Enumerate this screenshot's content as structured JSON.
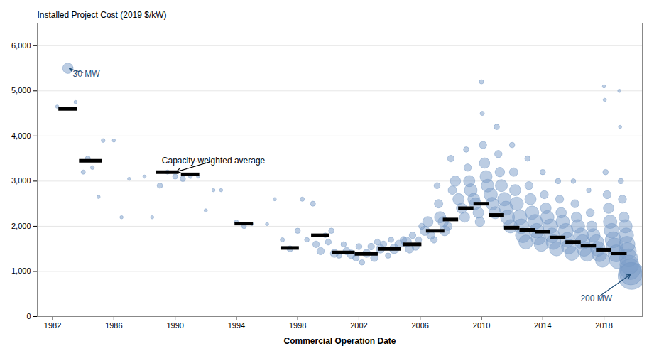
{
  "chart_data": {
    "type": "scatter",
    "ylabel": "Installed Project Cost (2019 $/kW)",
    "xlabel": "Commercial Operation Date",
    "xlim": [
      1981,
      2020.5
    ],
    "ylim": [
      0,
      6500
    ],
    "xticks": [
      1982,
      1986,
      1990,
      1994,
      1998,
      2002,
      2006,
      2010,
      2014,
      2018
    ],
    "yticks": [
      0,
      {
        "value": 1000,
        "label": "1,000"
      },
      {
        "value": 2000,
        "label": "2,000"
      },
      {
        "value": 3000,
        "label": "3,000"
      },
      {
        "value": 4000,
        "label": "4,000"
      },
      {
        "value": 5000,
        "label": "5,000"
      },
      {
        "value": 6000,
        "label": "6,000"
      }
    ],
    "grid": true,
    "series": [
      {
        "type": "bubble",
        "color": "#7A9CC7",
        "x": [
          1982.3,
          1983.0,
          1983.5,
          1984.0,
          1984.3,
          1984.6,
          1985.0,
          1985.3,
          1986.0,
          1986.5,
          1987.0,
          1988.0,
          1988.5,
          1989.0,
          1989.5,
          1990.0,
          1990.5,
          1991.0,
          1991.5,
          1992.0,
          1992.5,
          1993.0,
          1994.0,
          1994.5,
          1995.0,
          1996.0,
          1996.5,
          1997.0,
          1997.5,
          1998.0,
          1998.3,
          1998.6,
          1999.0,
          1999.2,
          1999.5,
          1999.8,
          2000.0,
          2000.2,
          2000.4,
          2000.7,
          2001.0,
          2001.2,
          2001.5,
          2001.8,
          2002.0,
          2002.2,
          2002.5,
          2002.8,
          2003.0,
          2003.2,
          2003.4,
          2003.6,
          2003.9,
          2004.1,
          2004.3,
          2004.6,
          2004.9,
          2005.1,
          2005.3,
          2005.5,
          2005.7,
          2005.9,
          2006.1,
          2006.3,
          2006.5,
          2006.7,
          2006.9,
          2007.1,
          2007.2,
          2007.3,
          2007.5,
          2007.6,
          2007.8,
          2008.0,
          2008.1,
          2008.3,
          2008.5,
          2008.7,
          2008.9,
          2009.0,
          2009.1,
          2009.2,
          2009.3,
          2009.5,
          2009.6,
          2009.8,
          2009.9,
          2010.0,
          2010.05,
          2010.1,
          2010.2,
          2010.3,
          2010.4,
          2010.6,
          2010.7,
          2010.9,
          2011.0,
          2011.1,
          2011.2,
          2011.3,
          2011.5,
          2011.6,
          2011.7,
          2011.9,
          2012.0,
          2012.1,
          2012.2,
          2012.3,
          2012.5,
          2012.6,
          2012.7,
          2012.9,
          2013.0,
          2013.1,
          2013.2,
          2013.3,
          2013.5,
          2013.6,
          2013.7,
          2013.9,
          2014.0,
          2014.1,
          2014.2,
          2014.3,
          2014.5,
          2014.6,
          2014.7,
          2014.9,
          2015.0,
          2015.1,
          2015.2,
          2015.3,
          2015.5,
          2015.6,
          2015.7,
          2015.9,
          2016.0,
          2016.1,
          2016.2,
          2016.3,
          2016.5,
          2016.6,
          2016.7,
          2016.9,
          2017.0,
          2017.1,
          2017.2,
          2017.3,
          2017.5,
          2017.6,
          2017.7,
          2017.9,
          2018.0,
          2018.05,
          2018.1,
          2018.2,
          2018.3,
          2018.4,
          2018.5,
          2018.6,
          2018.7,
          2018.8,
          2018.9,
          2019.0,
          2019.05,
          2019.1,
          2019.2,
          2019.3,
          2019.4,
          2019.45,
          2019.5,
          2019.55,
          2019.6,
          2019.65,
          2019.7,
          2019.75,
          2019.8
        ],
        "values": [
          4650,
          5500,
          4750,
          3200,
          3500,
          3300,
          2650,
          3900,
          3900,
          2200,
          3050,
          3100,
          2200,
          2900,
          3200,
          3100,
          3050,
          3100,
          3100,
          2350,
          2800,
          2800,
          2100,
          2000,
          2050,
          2050,
          2600,
          1700,
          1500,
          1900,
          2600,
          1700,
          2500,
          1600,
          1450,
          1800,
          1650,
          1900,
          1400,
          1350,
          1600,
          1450,
          1380,
          1300,
          1550,
          1200,
          1400,
          1550,
          1300,
          1650,
          1500,
          1600,
          1350,
          1700,
          1500,
          1600,
          1700,
          1650,
          1500,
          1800,
          1550,
          1700,
          2000,
          1900,
          2100,
          1800,
          1700,
          2900,
          2500,
          2200,
          2100,
          1900,
          2000,
          3500,
          2800,
          3000,
          2600,
          2400,
          2200,
          3700,
          3300,
          3000,
          2800,
          2600,
          2500,
          2300,
          2100,
          5200,
          4500,
          3800,
          3400,
          3100,
          2900,
          2700,
          2500,
          2300,
          4200,
          3600,
          3200,
          2900,
          2600,
          2400,
          2200,
          2000,
          3800,
          3200,
          2800,
          2500,
          2200,
          2000,
          1800,
          1650,
          3500,
          2900,
          2600,
          2300,
          2100,
          1900,
          1750,
          1600,
          3200,
          2700,
          2400,
          2200,
          2000,
          1800,
          1650,
          1500,
          3000,
          2600,
          2300,
          2100,
          1900,
          1700,
          1550,
          1400,
          3000,
          2500,
          2200,
          2000,
          1800,
          1650,
          1500,
          1380,
          2800,
          2300,
          2000,
          1800,
          1650,
          1500,
          1380,
          1250,
          5100,
          4800,
          3200,
          2700,
          2400,
          2100,
          1900,
          1700,
          1550,
          1400,
          1250,
          5000,
          4200,
          3000,
          2600,
          2200,
          2000,
          1800,
          1600,
          1450,
          1300,
          1150,
          1050,
          950,
          900
        ],
        "sizes": [
          3,
          30,
          3,
          5,
          7,
          4,
          3,
          4,
          3,
          3,
          3,
          3,
          3,
          8,
          5,
          7,
          8,
          4,
          3,
          3,
          3,
          3,
          4,
          6,
          3,
          3,
          3,
          5,
          10,
          8,
          5,
          6,
          7,
          12,
          15,
          6,
          10,
          8,
          18,
          8,
          8,
          15,
          20,
          12,
          10,
          8,
          18,
          12,
          15,
          10,
          20,
          12,
          8,
          8,
          25,
          18,
          12,
          28,
          20,
          12,
          15,
          10,
          10,
          25,
          30,
          18,
          12,
          10,
          20,
          35,
          30,
          28,
          20,
          12,
          20,
          30,
          35,
          30,
          28,
          8,
          15,
          35,
          45,
          40,
          38,
          32,
          25,
          5,
          5,
          15,
          30,
          40,
          45,
          50,
          45,
          40,
          8,
          15,
          25,
          40,
          50,
          55,
          55,
          50,
          8,
          20,
          35,
          50,
          60,
          60,
          60,
          55,
          8,
          18,
          35,
          50,
          60,
          60,
          60,
          55,
          8,
          18,
          32,
          50,
          60,
          60,
          60,
          55,
          8,
          18,
          30,
          50,
          60,
          60,
          60,
          55,
          6,
          18,
          30,
          50,
          60,
          60,
          60,
          55,
          6,
          18,
          30,
          50,
          60,
          60,
          60,
          55,
          3,
          3,
          8,
          18,
          30,
          50,
          60,
          70,
          80,
          80,
          80,
          3,
          3,
          8,
          18,
          30,
          50,
          60,
          70,
          80,
          90,
          100,
          120,
          140,
          200
        ]
      },
      {
        "type": "segment",
        "color": "#000000",
        "x": [
          1983.0,
          1984.5,
          1989.5,
          1991.0,
          1994.5,
          1997.5,
          1999.5,
          2001.0,
          2002.5,
          2004.0,
          2005.5,
          2007.0,
          2008.0,
          2009.0,
          2010.0,
          2011.0,
          2012.0,
          2013.0,
          2014.0,
          2015.0,
          2016.0,
          2017.0,
          2018.0,
          2019.0
        ],
        "values": [
          4600,
          3450,
          3200,
          3150,
          2060,
          1520,
          1800,
          1420,
          1390,
          1500,
          1600,
          1900,
          2150,
          2400,
          2500,
          2250,
          1970,
          1920,
          1880,
          1750,
          1650,
          1570,
          1480,
          1400
        ],
        "widths": [
          1.2,
          1.5,
          1.5,
          1.2,
          1.2,
          1.2,
          1.2,
          1.5,
          1.5,
          1.5,
          1.2,
          1.2,
          1.0,
          1.0,
          1.0,
          1.0,
          1.0,
          1.0,
          1.0,
          1.0,
          1.0,
          1.0,
          1.0,
          1.0
        ]
      }
    ],
    "annotations": [
      {
        "text": "30 MW",
        "x": 1983.0,
        "y": 5500,
        "text_x": 1984.2,
        "text_y": 5380,
        "color": "#1F4E79"
      },
      {
        "text": "200 MW",
        "x": 2019.8,
        "y": 950,
        "text_x": 2017.5,
        "text_y": 400,
        "color": "#1F4E79"
      },
      {
        "text": "Capacity-weighted average",
        "x": 1990.0,
        "y": 3200,
        "text_x": 1992.5,
        "text_y": 3450,
        "color": "#000000"
      }
    ]
  }
}
